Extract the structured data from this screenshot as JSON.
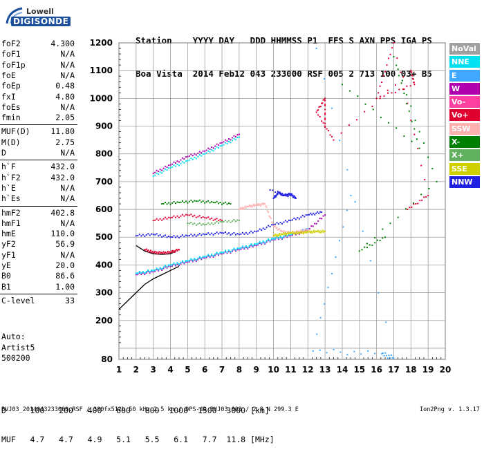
{
  "logo": {
    "brand": "Lowell",
    "product": "DIGISONDE"
  },
  "header": {
    "line1": "Station    YYYY DAY   DDD HHMMSS P1  FFS S AXN PPS IGA PS",
    "line2": "Boa Vista  2014 Feb12 043 233000 RSF 005 2 713 100 03+ B5"
  },
  "params": [
    [
      {
        "name": "foF2",
        "value": "4.300"
      },
      {
        "name": "foF1",
        "value": "N/A"
      },
      {
        "name": "foF1p",
        "value": "N/A"
      },
      {
        "name": "foE",
        "value": "N/A"
      },
      {
        "name": "foEp",
        "value": "0.48"
      },
      {
        "name": "fxI",
        "value": "4.80"
      },
      {
        "name": "foEs",
        "value": "N/A"
      },
      {
        "name": "fmin",
        "value": "2.05"
      }
    ],
    [
      {
        "name": "MUF(D)",
        "value": "11.80"
      },
      {
        "name": "M(D)",
        "value": "2.75"
      },
      {
        "name": "D",
        "value": "N/A"
      }
    ],
    [
      {
        "name": "h`F",
        "value": "432.0"
      },
      {
        "name": "h`F2",
        "value": "432.0"
      },
      {
        "name": "h`E",
        "value": "N/A"
      },
      {
        "name": "h`Es",
        "value": "N/A"
      }
    ],
    [
      {
        "name": "hmF2",
        "value": "402.8"
      },
      {
        "name": "hmF1",
        "value": "N/A"
      },
      {
        "name": "hmE",
        "value": "110.0"
      },
      {
        "name": "yF2",
        "value": "56.9"
      },
      {
        "name": "yF1",
        "value": "N/A"
      },
      {
        "name": "yE",
        "value": "20.0"
      },
      {
        "name": "B0",
        "value": "86.6"
      },
      {
        "name": "B1",
        "value": "1.00"
      }
    ],
    [
      {
        "name": "C-level",
        "value": "33"
      }
    ]
  ],
  "auto": {
    "label": "Auto:",
    "artist": "Artist5",
    "code": "500200"
  },
  "muf_table": {
    "d_label": "D",
    "muf_label": "MUF",
    "d_values": [
      "100",
      "200",
      "400",
      "600",
      "800",
      "1000",
      "1500",
      "3000"
    ],
    "d_unit": "[km]",
    "muf_values": [
      "4.7",
      "4.7",
      "4.9",
      "5.1",
      "5.5",
      "6.1",
      "7.7",
      "11.8"
    ],
    "muf_unit": "[MHz]"
  },
  "footer": "BVJ03_2014043233000.RSF / 380fx512h 50 kHz 2.5 km / DPS-4D BVJ03 003 / 2.8 N 299.3 E",
  "version": "Ion2Png v. 1.3.17",
  "legend": [
    {
      "label": "NoVal",
      "color": "#a0a0a0"
    },
    {
      "label": "NNE",
      "color": "#00e0f0"
    },
    {
      "label": "E",
      "color": "#40a8ff"
    },
    {
      "label": "W",
      "color": "#b000b0"
    },
    {
      "label": "Vo-",
      "color": "#ff40a0"
    },
    {
      "label": "Vo+",
      "color": "#e00030"
    },
    {
      "label": "SSW",
      "color": "#ffb0b0"
    },
    {
      "label": "X-",
      "color": "#008000"
    },
    {
      "label": "X+",
      "color": "#60b060"
    },
    {
      "label": "SSE",
      "color": "#d0d000"
    },
    {
      "label": "NNW",
      "color": "#2020e0"
    }
  ],
  "chart_data": {
    "type": "scatter",
    "xlabel": "",
    "ylabel": "",
    "xlim": [
      1,
      20
    ],
    "ylim": [
      80,
      1200
    ],
    "x_ticks": [
      1,
      2,
      3,
      4,
      5,
      6,
      7,
      8,
      9,
      10,
      11,
      12,
      13,
      14,
      15,
      16,
      17,
      18,
      19,
      20
    ],
    "y_ticks": [
      80,
      100,
      200,
      300,
      400,
      500,
      600,
      700,
      800,
      900,
      1000,
      1100,
      1200
    ],
    "y_tick_labels": [
      "80",
      "",
      "200",
      "300",
      "400",
      "500",
      "600",
      "700",
      "800",
      "900",
      "1000",
      "1100",
      "1200"
    ],
    "grid": true,
    "legend_position": "right",
    "series": [
      {
        "color": "#b000b0",
        "points": [
          [
            2.0,
            365
          ],
          [
            3.0,
            375
          ],
          [
            4.0,
            395
          ],
          [
            5.0,
            410
          ],
          [
            6.0,
            425
          ],
          [
            7.0,
            440
          ],
          [
            8.0,
            455
          ],
          [
            9.0,
            470
          ],
          [
            10.0,
            490
          ],
          [
            11.0,
            505
          ],
          [
            12.0,
            525
          ],
          [
            13.0,
            580
          ]
        ]
      },
      {
        "color": "#40a8ff",
        "points": [
          [
            2.0,
            368
          ],
          [
            3.0,
            378
          ],
          [
            4.0,
            398
          ],
          [
            5.0,
            413
          ],
          [
            6.0,
            428
          ],
          [
            7.0,
            443
          ],
          [
            8.0,
            458
          ],
          [
            9.0,
            473
          ],
          [
            10.0,
            492
          ],
          [
            11.0,
            508
          ],
          [
            12.0,
            530
          ]
        ]
      },
      {
        "color": "#00e0f0",
        "points": [
          [
            2.0,
            370
          ],
          [
            3.0,
            380
          ],
          [
            4.0,
            400
          ],
          [
            5.0,
            415
          ],
          [
            6.0,
            430
          ],
          [
            7.0,
            445
          ],
          [
            8.0,
            460
          ],
          [
            9.0,
            476
          ],
          [
            10.0,
            495
          ],
          [
            11.0,
            510
          ]
        ]
      },
      {
        "color": "#2020e0",
        "points": [
          [
            2.0,
            505
          ],
          [
            3.0,
            510
          ],
          [
            4.0,
            500
          ],
          [
            5.0,
            505
          ],
          [
            6.0,
            510
          ],
          [
            7.0,
            515
          ],
          [
            8.0,
            510
          ],
          [
            9.0,
            520
          ],
          [
            10.0,
            545
          ],
          [
            11.0,
            560
          ],
          [
            12.0,
            580
          ],
          [
            12.8,
            590
          ]
        ]
      },
      {
        "color": "#ffb0b0",
        "points": [
          [
            8.0,
            600
          ],
          [
            8.5,
            610
          ],
          [
            9.0,
            615
          ],
          [
            9.5,
            620
          ],
          [
            10.0,
            540
          ],
          [
            10.5,
            520
          ],
          [
            11.0,
            515
          ],
          [
            11.5,
            520
          ],
          [
            12.0,
            525
          ]
        ]
      },
      {
        "color": "#d0d000",
        "points": [
          [
            10.0,
            505
          ],
          [
            10.5,
            510
          ],
          [
            11.0,
            515
          ],
          [
            11.5,
            515
          ],
          [
            12.0,
            518
          ],
          [
            12.5,
            520
          ],
          [
            13.0,
            520
          ]
        ]
      },
      {
        "color": "#2020e0",
        "points": [
          [
            10.0,
            640
          ],
          [
            10.3,
            660
          ],
          [
            10.6,
            650
          ],
          [
            11.0,
            655
          ],
          [
            11.3,
            640
          ],
          [
            9.8,
            670
          ]
        ]
      },
      {
        "color": "#b000b0",
        "points": [
          [
            3.0,
            730
          ],
          [
            4.0,
            760
          ],
          [
            5.0,
            790
          ],
          [
            6.0,
            810
          ],
          [
            7.0,
            840
          ],
          [
            8.0,
            870
          ]
        ]
      },
      {
        "color": "#00e0f0",
        "points": [
          [
            3.0,
            720
          ],
          [
            4.0,
            750
          ],
          [
            5.0,
            775
          ],
          [
            6.0,
            800
          ],
          [
            7.0,
            830
          ],
          [
            8.0,
            860
          ]
        ]
      },
      {
        "color": "#008000",
        "points": [
          [
            3.5,
            620
          ],
          [
            4.5,
            625
          ],
          [
            5.5,
            630
          ],
          [
            6.5,
            625
          ],
          [
            7.5,
            620
          ]
        ]
      },
      {
        "color": "#e00030",
        "points": [
          [
            3.0,
            560
          ],
          [
            4.0,
            570
          ],
          [
            5.0,
            580
          ],
          [
            6.0,
            570
          ],
          [
            7.0,
            560
          ]
        ]
      },
      {
        "color": "#60b060",
        "points": [
          [
            5.0,
            550
          ],
          [
            6.0,
            545
          ],
          [
            7.0,
            555
          ],
          [
            8.0,
            560
          ]
        ]
      },
      {
        "color": "#000000",
        "points": [
          [
            1.0,
            240
          ],
          [
            1.5,
            270
          ],
          [
            2.0,
            300
          ],
          [
            2.5,
            330
          ],
          [
            3.0,
            350
          ],
          [
            3.5,
            365
          ],
          [
            4.0,
            380
          ],
          [
            4.5,
            395
          ]
        ]
      },
      {
        "color": "#000000",
        "points": [
          [
            2.0,
            470
          ],
          [
            2.5,
            450
          ],
          [
            3.0,
            440
          ],
          [
            3.5,
            438
          ],
          [
            4.0,
            440
          ],
          [
            4.3,
            450
          ]
        ]
      },
      {
        "color": "#e00030",
        "points": [
          [
            2.5,
            455
          ],
          [
            3.0,
            445
          ],
          [
            3.5,
            443
          ],
          [
            4.0,
            445
          ],
          [
            4.5,
            455
          ]
        ]
      },
      {
        "color": "#e00030",
        "points": [
          [
            13.0,
            900
          ],
          [
            13.0,
            1000
          ],
          [
            12.5,
            950
          ],
          [
            13.5,
            850
          ],
          [
            18.0,
            1100
          ],
          [
            18.2,
            1050
          ],
          [
            16.0,
            1000
          ],
          [
            17.0,
            1200
          ],
          [
            19.0,
            650
          ],
          [
            17.8,
            600
          ]
        ]
      },
      {
        "color": "#008000",
        "points": [
          [
            14.0,
            1050
          ],
          [
            18.5,
            820
          ],
          [
            17.0,
            1150
          ],
          [
            19.5,
            700
          ],
          [
            15.0,
            450
          ],
          [
            16.5,
            500
          ]
        ]
      },
      {
        "color": "#40a8ff",
        "points": [
          [
            12.5,
            1180
          ],
          [
            17.0,
            82
          ],
          [
            16.3,
            90
          ],
          [
            12.3,
            95
          ],
          [
            14.5,
            650
          ]
        ]
      }
    ]
  }
}
